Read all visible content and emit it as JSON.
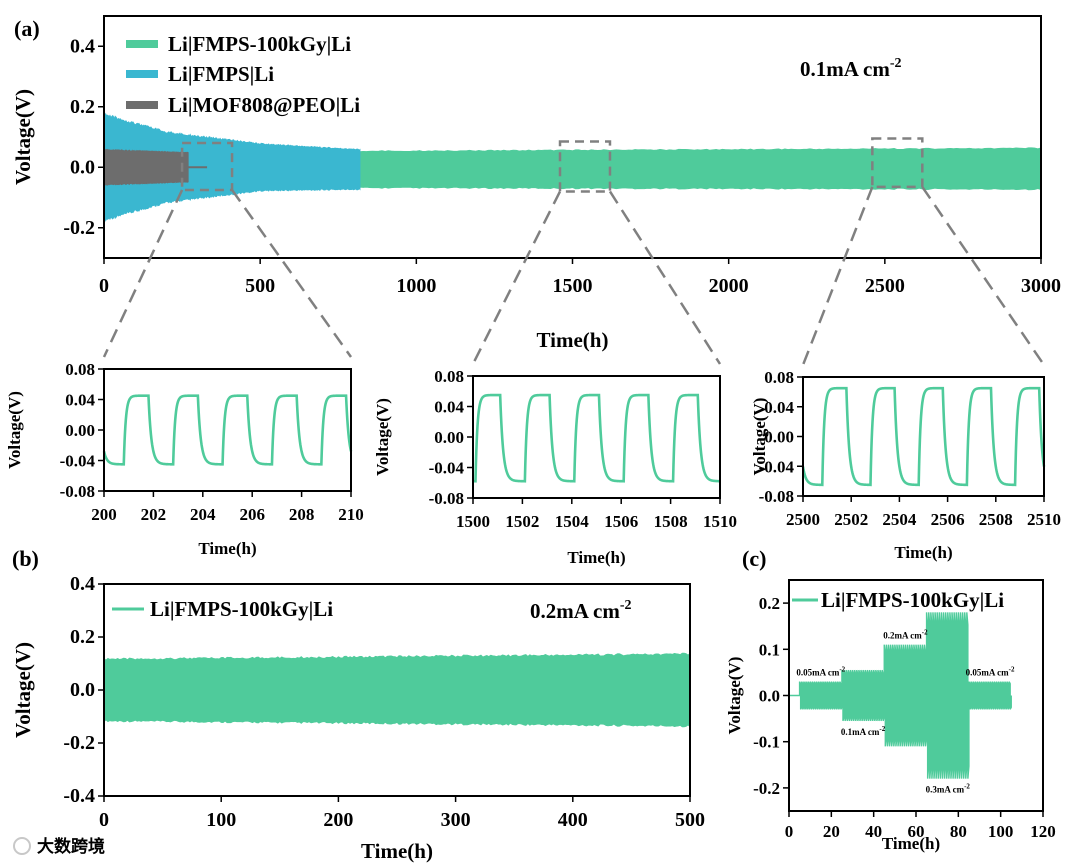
{
  "colors": {
    "green": "#4fcb9b",
    "blue": "#3ab7d0",
    "gray": "#6d6d6d",
    "zoom": "#808080"
  },
  "watermark": {
    "text": "大数跨境",
    "icon": "logo-icon"
  },
  "chart_data": [
    {
      "id": "a",
      "panel_label": "(a)",
      "type": "line",
      "xlabel": "Time(h)",
      "ylabel": "Voltage(V)",
      "xlim": [
        0,
        3000
      ],
      "ylim": [
        -0.3,
        0.5
      ],
      "xticks": [
        0,
        500,
        1000,
        1500,
        2000,
        2500,
        3000
      ],
      "yticks": [
        -0.2,
        0.0,
        0.2,
        0.4
      ],
      "ytick_labels": [
        "-0.2",
        "0.0",
        "0.2",
        "0.4"
      ],
      "annotation": "0.1mA cm-2",
      "annotation_base": "0.1mA cm",
      "annotation_sup": "-2",
      "series": [
        {
          "name": "Li|FMPS-100kGy|Li",
          "color_key": "green",
          "x_range": [
            0,
            3000
          ],
          "envelope": [
            [
              0,
              0.06,
              -0.08
            ],
            [
              800,
              0.055,
              -0.07
            ],
            [
              3000,
              0.065,
              -0.075
            ]
          ]
        },
        {
          "name": "Li|FMPS|Li",
          "color_key": "blue",
          "x_range": [
            0,
            820
          ],
          "envelope": [
            [
              0,
              0.18,
              -0.18
            ],
            [
              200,
              0.12,
              -0.12
            ],
            [
              500,
              0.08,
              -0.08
            ],
            [
              820,
              0.06,
              -0.075
            ]
          ]
        },
        {
          "name": "Li|MOF808@PEO|Li",
          "color_key": "gray",
          "x_range": [
            0,
            270
          ],
          "envelope": [
            [
              0,
              0.06,
              -0.06
            ],
            [
              270,
              0.05,
              -0.05
            ]
          ]
        }
      ],
      "zoom_regions": [
        {
          "x": [
            250,
            410
          ],
          "y": [
            -0.075,
            0.08
          ]
        },
        {
          "x": [
            1460,
            1620
          ],
          "y": [
            -0.08,
            0.085
          ]
        },
        {
          "x": [
            2460,
            2620
          ],
          "y": [
            -0.065,
            0.095
          ]
        }
      ]
    },
    {
      "id": "a1",
      "type": "line",
      "xlabel": "Time(h)",
      "ylabel": "Voltage(V)",
      "xlim": [
        200,
        210
      ],
      "ylim": [
        -0.08,
        0.08
      ],
      "xticks": [
        200,
        202,
        204,
        206,
        208,
        210
      ],
      "yticks": [
        -0.08,
        -0.04,
        0.0,
        0.04,
        0.08
      ],
      "ytick_labels": [
        "-0.08",
        "-0.04",
        "0.00",
        "0.04",
        "0.08"
      ],
      "series": [
        {
          "name": "Li|FMPS-100kGy|Li",
          "period_h": 2,
          "first_rise_h": 200.8,
          "high": 0.045,
          "low": -0.045
        }
      ]
    },
    {
      "id": "a2",
      "type": "line",
      "xlabel": "Time(h)",
      "ylabel": "Voltage(V)",
      "xlim": [
        1500,
        1510
      ],
      "ylim": [
        -0.08,
        0.08
      ],
      "xticks": [
        1500,
        1502,
        1504,
        1506,
        1508,
        1510
      ],
      "yticks": [
        -0.08,
        -0.04,
        0.0,
        0.04,
        0.08
      ],
      "ytick_labels": [
        "-0.08",
        "-0.04",
        "0.00",
        "0.04",
        "0.08"
      ],
      "series": [
        {
          "name": "Li|FMPS-100kGy|Li",
          "period_h": 2,
          "first_rise_h": 1500.1,
          "high": 0.055,
          "low": -0.058
        }
      ]
    },
    {
      "id": "a3",
      "type": "line",
      "xlabel": "Time(h)",
      "ylabel": "Voltage(V)",
      "xlim": [
        2500,
        2510
      ],
      "ylim": [
        -0.08,
        0.08
      ],
      "xticks": [
        2500,
        2502,
        2504,
        2506,
        2508,
        2510
      ],
      "yticks": [
        -0.08,
        -0.04,
        0.0,
        0.04,
        0.08
      ],
      "ytick_labels": [
        "-0.08",
        "-0.04",
        "0.00",
        "0.04",
        "0.08"
      ],
      "series": [
        {
          "name": "Li|FMPS-100kGy|Li",
          "period_h": 2,
          "first_rise_h": 2500.8,
          "high": 0.065,
          "low": -0.065
        }
      ]
    },
    {
      "id": "b",
      "panel_label": "(b)",
      "type": "line",
      "xlabel": "Time(h)",
      "ylabel": "Voltage(V)",
      "xlim": [
        0,
        500
      ],
      "ylim": [
        -0.4,
        0.4
      ],
      "xticks": [
        0,
        100,
        200,
        300,
        400,
        500
      ],
      "yticks": [
        -0.4,
        -0.2,
        0.0,
        0.2,
        0.4
      ],
      "ytick_labels": [
        "-0.4",
        "-0.2",
        "0.0",
        "0.2",
        "0.4"
      ],
      "annotation": "0.2mA cm-2",
      "annotation_base": "0.2mA cm",
      "annotation_sup": "-2",
      "series": [
        {
          "name": "Li|FMPS-100kGy|Li",
          "envelope": [
            [
              0,
              0.12,
              -0.12
            ],
            [
              500,
              0.14,
              -0.14
            ]
          ]
        }
      ]
    },
    {
      "id": "c",
      "panel_label": "(c)",
      "type": "line",
      "xlabel": "Time(h)",
      "ylabel": "Voltage(V)",
      "xlim": [
        0,
        120
      ],
      "ylim": [
        -0.25,
        0.25
      ],
      "xticks": [
        0,
        20,
        40,
        60,
        80,
        100,
        120
      ],
      "yticks": [
        -0.2,
        -0.1,
        0.0,
        0.1,
        0.2
      ],
      "ytick_labels": [
        "-0.2",
        "-0.1",
        "0.0",
        "0.1",
        "0.2"
      ],
      "series": [
        {
          "name": "Li|FMPS-100kGy|Li"
        }
      ],
      "segments": [
        {
          "label_base": "0.05mA cm",
          "label_sup": "-2",
          "x": [
            5,
            25
          ],
          "amplitude": 0.03,
          "label_pos": "above"
        },
        {
          "label_base": "0.1mA cm",
          "label_sup": "-2",
          "x": [
            25,
            45
          ],
          "amplitude": 0.055,
          "label_pos": "below"
        },
        {
          "label_base": "0.2mA cm",
          "label_sup": "-2",
          "x": [
            45,
            65
          ],
          "amplitude": 0.11,
          "label_pos": "above"
        },
        {
          "label_base": "0.3mA cm",
          "label_sup": "-2",
          "x": [
            65,
            85
          ],
          "amplitude": 0.18,
          "label_pos": "below"
        },
        {
          "label_base": "0.05mA cm",
          "label_sup": "-2",
          "x": [
            85,
            105
          ],
          "amplitude": 0.03,
          "label_pos": "above"
        }
      ]
    }
  ]
}
